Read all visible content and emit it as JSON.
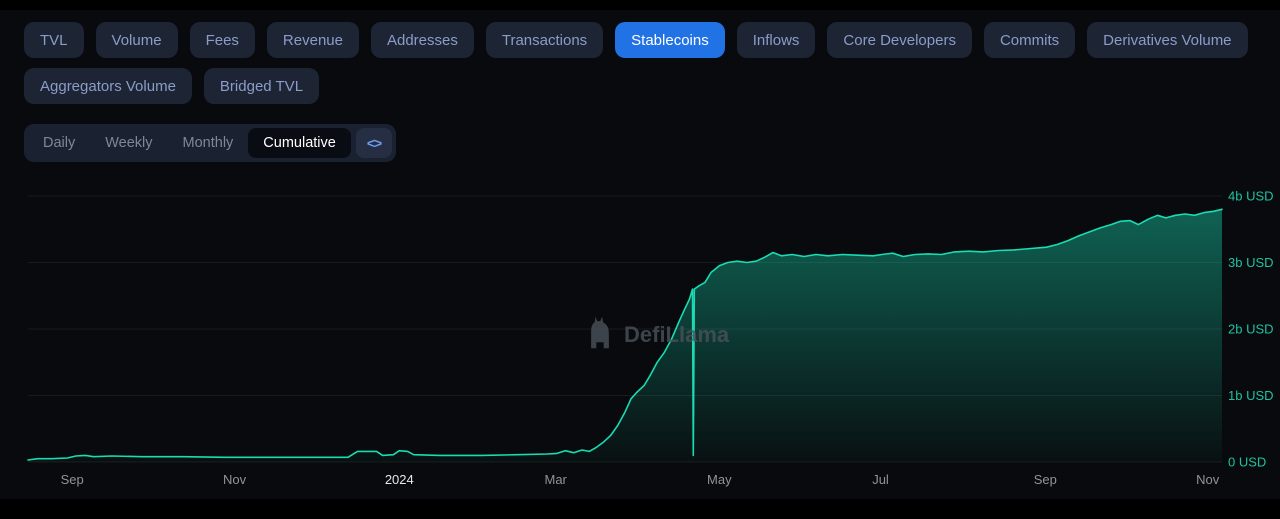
{
  "colors": {
    "background": "#080a0d",
    "tab_bg": "#1d2434",
    "tab_text": "#8a9dc9",
    "active_tab_bg": "#2172e5",
    "active_tab_text": "#ffffff",
    "period_active_bg": "#090c12",
    "embed_icon_blue": "#6f9bf0",
    "chart_line": "#19dcb4",
    "ytick_color": "#1fc2a2",
    "xtick_color": "#8f949c",
    "xtick_emphasis_color": "#e6e8ec",
    "grid": "rgba(255,255,255,0.07)",
    "watermark": "#4b525b"
  },
  "metric_tabs_row1": [
    {
      "label": "TVL",
      "active": false
    },
    {
      "label": "Volume",
      "active": false
    },
    {
      "label": "Fees",
      "active": false
    },
    {
      "label": "Revenue",
      "active": false
    },
    {
      "label": "Addresses",
      "active": false
    },
    {
      "label": "Transactions",
      "active": false
    },
    {
      "label": "Stablecoins",
      "active": true
    },
    {
      "label": "Inflows",
      "active": false
    },
    {
      "label": "Core Developers",
      "active": false
    },
    {
      "label": "Commits",
      "active": false
    },
    {
      "label": "Derivatives Volume",
      "active": false
    }
  ],
  "metric_tabs_row2": [
    {
      "label": "Aggregators Volume",
      "active": false
    },
    {
      "label": "Bridged TVL",
      "active": false
    }
  ],
  "period_tabs": [
    {
      "label": "Daily",
      "active": false
    },
    {
      "label": "Weekly",
      "active": false
    },
    {
      "label": "Monthly",
      "active": false
    },
    {
      "label": "Cumulative",
      "active": true
    }
  ],
  "embed_button": {
    "icon": "<>"
  },
  "watermark": {
    "text": "DefiLlama"
  },
  "chart_data": {
    "type": "area",
    "units": "billions USD",
    "grid": true,
    "legend": false,
    "ylim": [
      0,
      4
    ],
    "yticks": [
      {
        "value": 0,
        "label": "0 USD"
      },
      {
        "value": 1,
        "label": "1b USD"
      },
      {
        "value": 2,
        "label": "2b USD"
      },
      {
        "value": 3,
        "label": "3b USD"
      },
      {
        "value": 4,
        "label": "4b USD"
      }
    ],
    "xticks": [
      {
        "label": "Sep",
        "pos": 0.037,
        "emphasis": false
      },
      {
        "label": "Nov",
        "pos": 0.173,
        "emphasis": false
      },
      {
        "label": "2024",
        "pos": 0.311,
        "emphasis": true
      },
      {
        "label": "Mar",
        "pos": 0.442,
        "emphasis": false
      },
      {
        "label": "May",
        "pos": 0.579,
        "emphasis": false
      },
      {
        "label": "Jul",
        "pos": 0.714,
        "emphasis": false
      },
      {
        "label": "Sep",
        "pos": 0.852,
        "emphasis": false
      },
      {
        "label": "Nov",
        "pos": 0.988,
        "emphasis": false
      }
    ],
    "x_range": [
      "Aug 2023",
      "Nov 2024"
    ],
    "points": [
      [
        0.0,
        0.03
      ],
      [
        0.008,
        0.05
      ],
      [
        0.02,
        0.05
      ],
      [
        0.033,
        0.06
      ],
      [
        0.04,
        0.09
      ],
      [
        0.048,
        0.1
      ],
      [
        0.055,
        0.08
      ],
      [
        0.07,
        0.09
      ],
      [
        0.095,
        0.08
      ],
      [
        0.13,
        0.08
      ],
      [
        0.165,
        0.07
      ],
      [
        0.2,
        0.07
      ],
      [
        0.235,
        0.07
      ],
      [
        0.268,
        0.07
      ],
      [
        0.276,
        0.16
      ],
      [
        0.292,
        0.16
      ],
      [
        0.297,
        0.1
      ],
      [
        0.306,
        0.11
      ],
      [
        0.311,
        0.17
      ],
      [
        0.318,
        0.16
      ],
      [
        0.323,
        0.11
      ],
      [
        0.345,
        0.1
      ],
      [
        0.38,
        0.1
      ],
      [
        0.41,
        0.11
      ],
      [
        0.435,
        0.12
      ],
      [
        0.443,
        0.13
      ],
      [
        0.45,
        0.17
      ],
      [
        0.457,
        0.14
      ],
      [
        0.464,
        0.18
      ],
      [
        0.47,
        0.16
      ],
      [
        0.476,
        0.22
      ],
      [
        0.482,
        0.3
      ],
      [
        0.488,
        0.4
      ],
      [
        0.494,
        0.55
      ],
      [
        0.5,
        0.75
      ],
      [
        0.505,
        0.95
      ],
      [
        0.51,
        1.05
      ],
      [
        0.516,
        1.15
      ],
      [
        0.521,
        1.3
      ],
      [
        0.527,
        1.5
      ],
      [
        0.533,
        1.65
      ],
      [
        0.539,
        1.85
      ],
      [
        0.545,
        2.1
      ],
      [
        0.55,
        2.3
      ],
      [
        0.554,
        2.45
      ],
      [
        0.5565,
        2.6
      ],
      [
        0.5572,
        0.1
      ],
      [
        0.558,
        2.6
      ],
      [
        0.562,
        2.65
      ],
      [
        0.567,
        2.7
      ],
      [
        0.572,
        2.85
      ],
      [
        0.579,
        2.95
      ],
      [
        0.586,
        3.0
      ],
      [
        0.594,
        3.02
      ],
      [
        0.602,
        3.0
      ],
      [
        0.61,
        3.02
      ],
      [
        0.617,
        3.08
      ],
      [
        0.624,
        3.15
      ],
      [
        0.631,
        3.1
      ],
      [
        0.64,
        3.12
      ],
      [
        0.65,
        3.09
      ],
      [
        0.66,
        3.12
      ],
      [
        0.67,
        3.1
      ],
      [
        0.682,
        3.12
      ],
      [
        0.695,
        3.11
      ],
      [
        0.708,
        3.1
      ],
      [
        0.715,
        3.12
      ],
      [
        0.724,
        3.14
      ],
      [
        0.733,
        3.09
      ],
      [
        0.743,
        3.12
      ],
      [
        0.754,
        3.13
      ],
      [
        0.765,
        3.12
      ],
      [
        0.776,
        3.16
      ],
      [
        0.788,
        3.17
      ],
      [
        0.8,
        3.16
      ],
      [
        0.813,
        3.18
      ],
      [
        0.826,
        3.19
      ],
      [
        0.84,
        3.21
      ],
      [
        0.853,
        3.23
      ],
      [
        0.862,
        3.27
      ],
      [
        0.871,
        3.33
      ],
      [
        0.88,
        3.4
      ],
      [
        0.889,
        3.46
      ],
      [
        0.898,
        3.52
      ],
      [
        0.907,
        3.57
      ],
      [
        0.915,
        3.62
      ],
      [
        0.923,
        3.63
      ],
      [
        0.93,
        3.57
      ],
      [
        0.938,
        3.65
      ],
      [
        0.946,
        3.71
      ],
      [
        0.953,
        3.67
      ],
      [
        0.961,
        3.71
      ],
      [
        0.969,
        3.73
      ],
      [
        0.977,
        3.71
      ],
      [
        0.985,
        3.75
      ],
      [
        0.993,
        3.77
      ],
      [
        1.0,
        3.8
      ]
    ]
  }
}
